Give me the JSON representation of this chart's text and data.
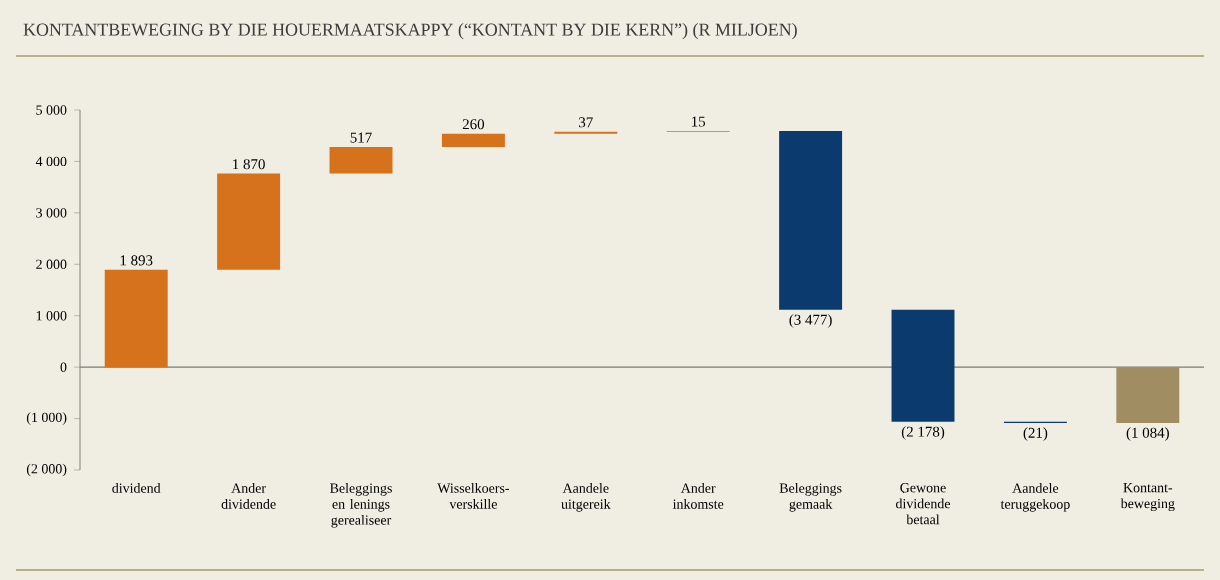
{
  "chart_data": {
    "type": "bar",
    "title": "KONTANTBEWEGING BY DIE HOUERMAATSKAPPY (“KONTANT BY DIE KERN”) (R MILJOEN)",
    "categories": [
      "dividend",
      "Ander dividende",
      "Beleggings en lenings gerealiseer",
      "Wisselkoers-verskille",
      "Aandele uitgereik",
      "Ander inkomste",
      "Beleggings gemaak",
      "Gewone dividende betaal",
      "Aandele teruggekoop",
      "Kontant-beweging"
    ],
    "values": [
      1893,
      1870,
      517,
      260,
      37,
      15,
      -3477,
      -2178,
      -21,
      -1084
    ],
    "base": [
      0,
      1893,
      3763,
      4280,
      4540,
      4577,
      4592,
      1115,
      -1063,
      0
    ],
    "colors": [
      "#d6711c",
      "#d6711c",
      "#d6711c",
      "#d6711c",
      "#d6711c",
      "#d6711c",
      "#0b3a6e",
      "#0b3a6e",
      "#0b3a6e",
      "#a08d62"
    ],
    "value_labels": [
      "1 893",
      "1 870",
      "517",
      "260",
      "37",
      "15",
      "(3 477)",
      "(2 178)",
      "(21)",
      "(1 084)"
    ],
    "ylim": [
      -2000,
      5000
    ],
    "yticks": [
      {
        "value": -2000,
        "label": "(2 000)"
      },
      {
        "value": -1000,
        "label": "(1 000)"
      },
      0,
      {
        "value": 1000,
        "label": "1 000"
      },
      {
        "value": 2000,
        "label": "2 000"
      },
      {
        "value": 3000,
        "label": "3 000"
      },
      {
        "value": 4000,
        "label": "4 000"
      },
      {
        "value": 5000,
        "label": "5 000"
      }
    ],
    "ref_lines": [
      {
        "axis": "y",
        "value": 0,
        "color": "#7a7a7a"
      }
    ],
    "grid": false
  }
}
